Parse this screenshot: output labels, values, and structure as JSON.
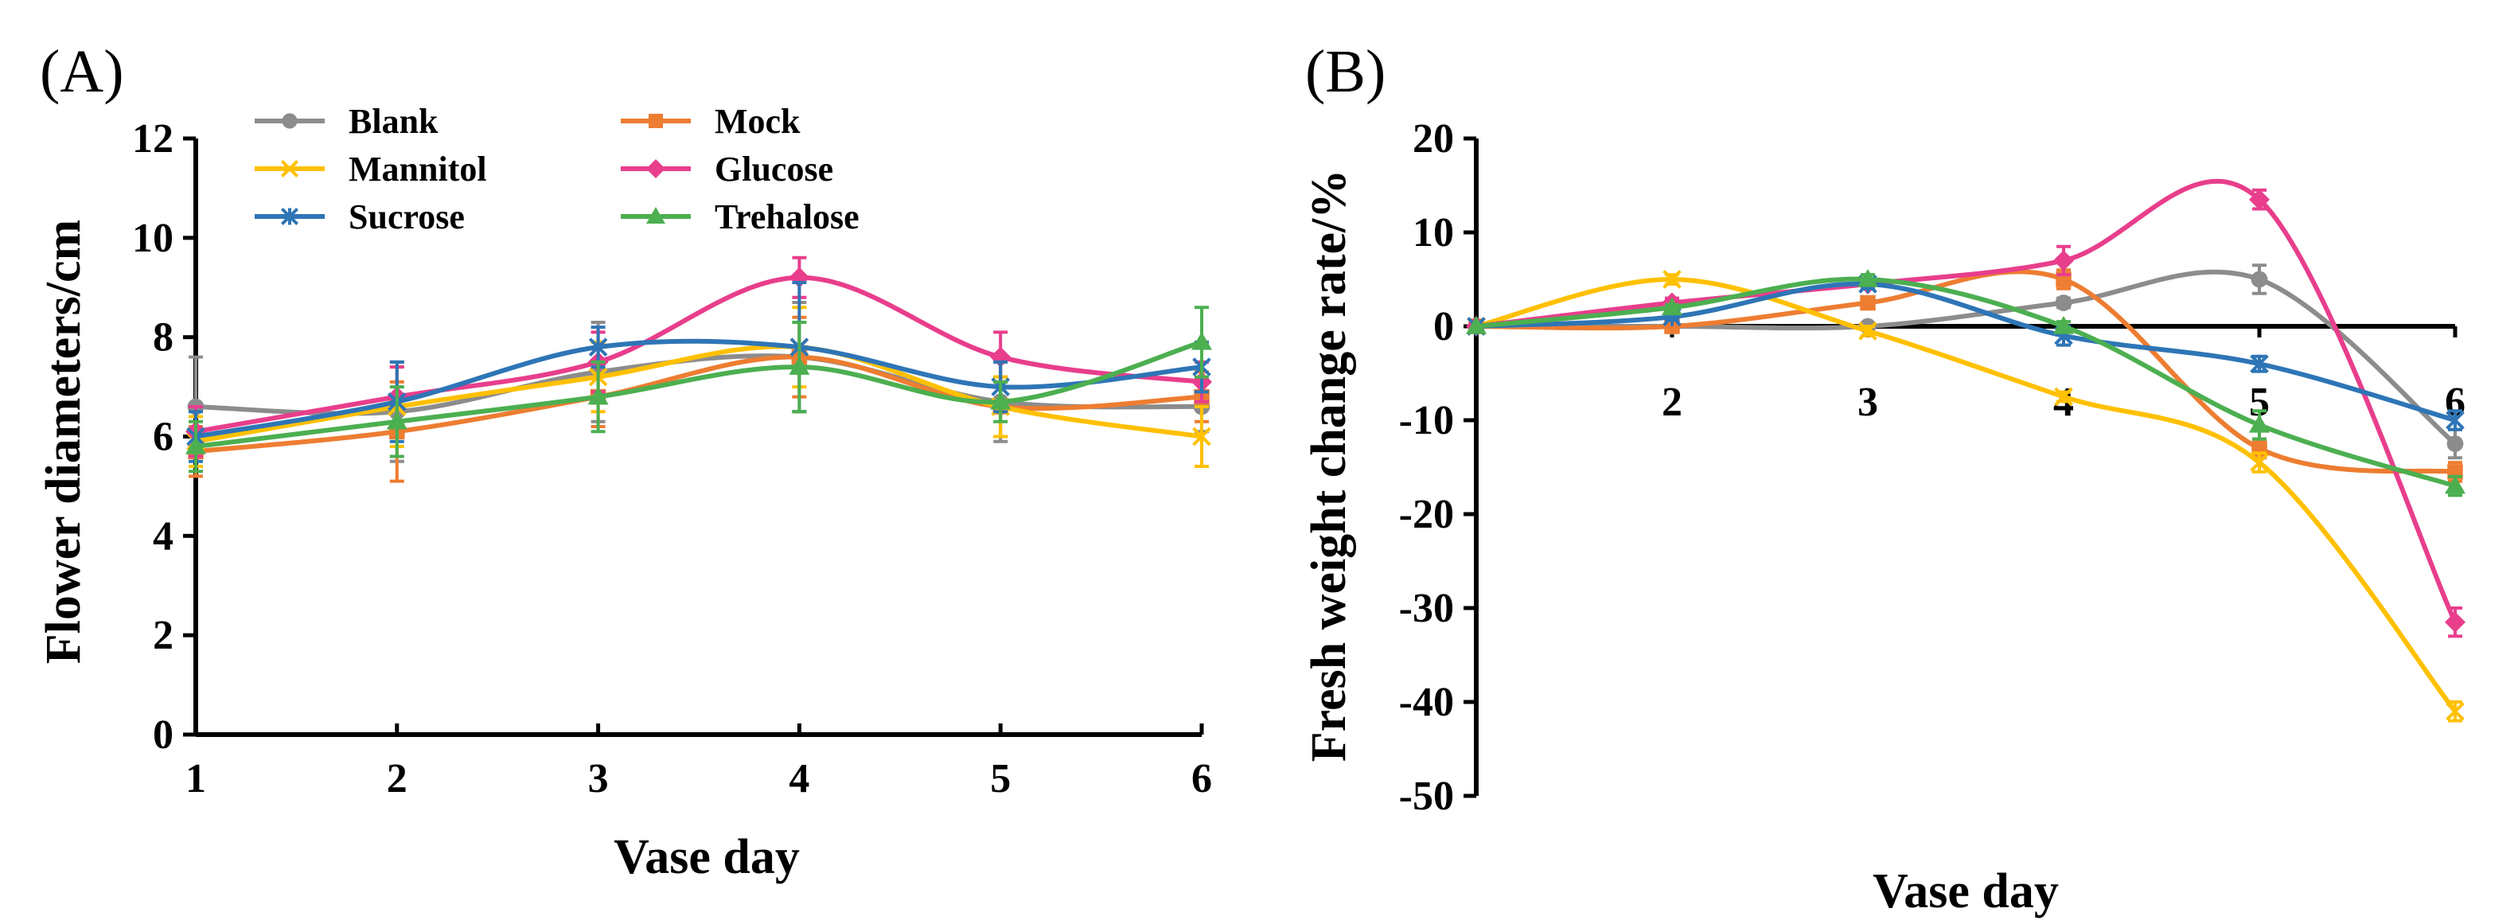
{
  "chart_data": [
    {
      "panel": "(A)",
      "type": "line",
      "title": "",
      "xlabel": "Vase day",
      "ylabel": "Flower diameters/cm",
      "x": [
        1,
        2,
        3,
        4,
        5,
        6
      ],
      "xticks": [
        "1",
        "2",
        "3",
        "4",
        "5",
        "6"
      ],
      "ylim": [
        0,
        12
      ],
      "yticks": [
        "0",
        "2",
        "4",
        "6",
        "8",
        "10",
        "12"
      ],
      "legend_position": "top-left",
      "series": [
        {
          "name": "Blank",
          "color": "#8c8c8c",
          "marker": "circle",
          "values": [
            6.6,
            6.5,
            7.3,
            7.6,
            6.7,
            6.6
          ],
          "errors": [
            1.0,
            1.0,
            1.0,
            1.1,
            0.8,
            0.5
          ]
        },
        {
          "name": "Mock",
          "color": "#ed7d31",
          "marker": "square",
          "values": [
            5.7,
            6.1,
            6.8,
            7.6,
            6.6,
            6.8
          ],
          "errors": [
            0.5,
            1.0,
            0.6,
            0.8,
            0.6,
            0.5
          ]
        },
        {
          "name": "Mannitol",
          "color": "#ffc000",
          "marker": "x",
          "values": [
            5.9,
            6.6,
            7.2,
            7.8,
            6.6,
            6.0
          ],
          "errors": [
            0.5,
            0.8,
            0.7,
            0.8,
            0.6,
            0.6
          ]
        },
        {
          "name": "Glucose",
          "color": "#e83e8c",
          "marker": "diamond",
          "values": [
            6.1,
            6.8,
            7.5,
            9.2,
            7.6,
            7.1
          ],
          "errors": [
            0.5,
            0.6,
            0.6,
            0.4,
            0.5,
            0.4
          ]
        },
        {
          "name": "Sucrose",
          "color": "#2e75b6",
          "marker": "asterisk",
          "values": [
            6.0,
            6.7,
            7.8,
            7.8,
            7.0,
            7.4
          ],
          "errors": [
            0.5,
            0.8,
            0.4,
            1.3,
            0.5,
            0.5
          ]
        },
        {
          "name": "Trehalose",
          "color": "#4caf50",
          "marker": "triangle",
          "values": [
            5.8,
            6.3,
            6.8,
            7.4,
            6.7,
            7.9
          ],
          "errors": [
            0.5,
            0.7,
            0.7,
            0.9,
            0.4,
            0.7
          ]
        }
      ]
    },
    {
      "panel": "(B)",
      "type": "line",
      "title": "",
      "xlabel": "Vase day",
      "ylabel": "Fresh weight change rate/%",
      "x": [
        1,
        2,
        3,
        4,
        5,
        6
      ],
      "xticks": [
        "2",
        "3",
        "4",
        "5",
        "6"
      ],
      "ylim": [
        -50,
        20
      ],
      "yticks": [
        "-50",
        "-40",
        "-30",
        "-20",
        "-10",
        "0",
        "10",
        "20"
      ],
      "series": [
        {
          "name": "Blank",
          "color": "#8c8c8c",
          "marker": "circle",
          "values": [
            0,
            0,
            0,
            2.5,
            5.0,
            -12.5
          ],
          "errors": [
            0,
            0,
            0,
            0.5,
            1.5,
            1.5
          ]
        },
        {
          "name": "Mock",
          "color": "#ed7d31",
          "marker": "square",
          "values": [
            0,
            0,
            2.5,
            5.0,
            -13.0,
            -15.5
          ],
          "errors": [
            0,
            0,
            0.5,
            1.0,
            1.0,
            1.0
          ]
        },
        {
          "name": "Mannitol",
          "color": "#ffc000",
          "marker": "x",
          "values": [
            0,
            5.0,
            -0.5,
            -7.5,
            -14.5,
            -41.0
          ],
          "errors": [
            0,
            0.5,
            0.5,
            0.5,
            1.0,
            1.0
          ]
        },
        {
          "name": "Glucose",
          "color": "#e83e8c",
          "marker": "diamond",
          "values": [
            0,
            2.5,
            4.5,
            7.0,
            13.5,
            -31.5
          ],
          "errors": [
            0,
            0.5,
            0.5,
            1.5,
            1.0,
            1.5
          ]
        },
        {
          "name": "Sucrose",
          "color": "#2e75b6",
          "marker": "asterisk",
          "values": [
            0,
            1.0,
            4.5,
            -1.0,
            -4.0,
            -10.0
          ],
          "errors": [
            0,
            0.3,
            0.5,
            1.0,
            0.8,
            1.0
          ]
        },
        {
          "name": "Trehalose",
          "color": "#4caf50",
          "marker": "triangle",
          "values": [
            0,
            2.0,
            5.0,
            0.0,
            -10.5,
            -17.0
          ],
          "errors": [
            0,
            0.3,
            0.5,
            0.5,
            1.5,
            1.0
          ]
        }
      ]
    }
  ]
}
